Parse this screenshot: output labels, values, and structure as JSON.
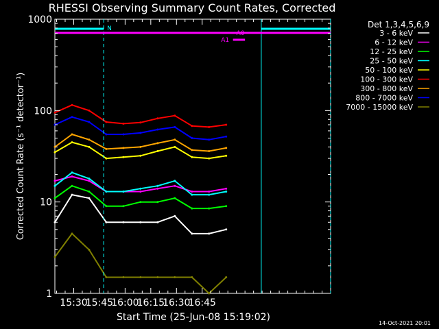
{
  "chart_data": {
    "type": "line",
    "title": "RHESSI Observing Summary Count Rates, Corrected",
    "xlabel": "Start Time (25-Jun-08 15:19:02)",
    "ylabel": "Corrected Count Rate (s⁻¹ detector⁻¹)",
    "yscale": "log",
    "ylim": [
      1,
      1000
    ],
    "xlim_min": [
      0,
      161
    ],
    "x_ticks": [
      {
        "min": 11,
        "label": "15:30"
      },
      {
        "min": 26,
        "label": "15:45"
      },
      {
        "min": 41,
        "label": "16:00"
      },
      {
        "min": 56,
        "label": "16:15"
      },
      {
        "min": 71,
        "label": "16:30"
      },
      {
        "min": 86,
        "label": "16:45"
      }
    ],
    "y_ticks": [
      {
        "value": 1,
        "label": "1"
      },
      {
        "value": 10,
        "label": "10"
      },
      {
        "value": 100,
        "label": "100"
      },
      {
        "value": 1000,
        "label": "1000"
      }
    ],
    "legend_header": "Det 1,3,4,5,6,9",
    "legend_position": "right",
    "series": [
      {
        "name": "3 - 6 keV",
        "color": "#ffffff",
        "x": [
          0,
          10,
          20,
          30,
          40,
          50,
          60,
          70,
          80,
          90,
          100
        ],
        "y": [
          6,
          12,
          11,
          6,
          6,
          6,
          6,
          7,
          4.5,
          4.5,
          5
        ]
      },
      {
        "name": "6 - 12 keV",
        "color": "#ff00ff",
        "x": [
          0,
          10,
          20,
          30,
          40,
          50,
          60,
          70,
          80,
          90,
          100
        ],
        "y": [
          17,
          19,
          17,
          13,
          13,
          13,
          14,
          15,
          13,
          13,
          14
        ]
      },
      {
        "name": "12 - 25 keV",
        "color": "#00ff00",
        "x": [
          0,
          10,
          20,
          30,
          40,
          50,
          60,
          70,
          80,
          90,
          100
        ],
        "y": [
          11,
          15,
          13,
          9,
          9,
          10,
          10,
          11,
          8.5,
          8.5,
          9
        ]
      },
      {
        "name": "25 - 50 keV",
        "color": "#00ffff",
        "x": [
          0,
          10,
          20,
          30,
          40,
          50,
          60,
          70,
          80,
          90,
          100
        ],
        "y": [
          15,
          21,
          18,
          13,
          13,
          14,
          15,
          17,
          12,
          12,
          13
        ]
      },
      {
        "name": "50 - 100 keV",
        "color": "#ffff00",
        "x": [
          0,
          10,
          20,
          30,
          40,
          50,
          60,
          70,
          80,
          90,
          100
        ],
        "y": [
          35,
          45,
          40,
          30,
          31,
          32,
          36,
          40,
          31,
          30,
          32
        ]
      },
      {
        "name": "100 - 300 keV",
        "color": "#ff0000",
        "x": [
          0,
          10,
          20,
          30,
          40,
          50,
          60,
          70,
          80,
          90,
          100
        ],
        "y": [
          95,
          115,
          100,
          75,
          72,
          74,
          82,
          88,
          68,
          66,
          70
        ]
      },
      {
        "name": "300 - 800 keV",
        "color": "#ffa500",
        "x": [
          0,
          10,
          20,
          30,
          40,
          50,
          60,
          70,
          80,
          90,
          100
        ],
        "y": [
          40,
          55,
          48,
          38,
          39,
          40,
          44,
          48,
          37,
          36,
          39
        ]
      },
      {
        "name": "800 - 7000 keV",
        "color": "#0000ff",
        "x": [
          0,
          10,
          20,
          30,
          40,
          50,
          60,
          70,
          80,
          90,
          100
        ],
        "y": [
          70,
          85,
          75,
          55,
          55,
          57,
          62,
          66,
          50,
          48,
          52
        ]
      },
      {
        "name": "7000 - 15000 keV",
        "color": "#808000",
        "x": [
          0,
          10,
          20,
          30,
          40,
          50,
          60,
          70,
          80,
          90,
          100
        ],
        "y": [
          2.5,
          4.5,
          3,
          1.5,
          1.5,
          1.5,
          1.5,
          1.5,
          1.5,
          1,
          1.5
        ]
      }
    ],
    "attenuator": {
      "labels": [
        "A0",
        "A1"
      ],
      "color": "#ff00ff"
    },
    "night": {
      "label": "N",
      "color": "#00ffff"
    },
    "footer_date": "14-Oct-2021 20:01"
  }
}
